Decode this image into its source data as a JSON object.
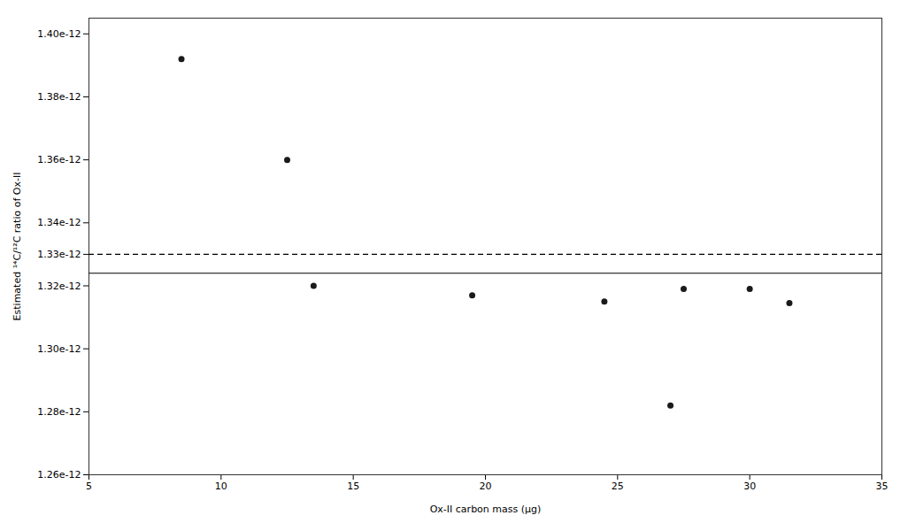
{
  "chart_data": {
    "type": "scatter",
    "x": [
      8.5,
      12.5,
      13.5,
      19.5,
      24.5,
      27.0,
      27.5,
      30.0,
      31.5
    ],
    "values": [
      1.392e-12,
      1.36e-12,
      1.32e-12,
      1.317e-12,
      1.315e-12,
      1.282e-12,
      1.319e-12,
      1.319e-12,
      1.3145e-12
    ],
    "color": "#1a1a1a",
    "hlines": [
      {
        "y": 1.324e-12,
        "line_style": "solid",
        "color": "#000000"
      },
      {
        "y": 1.33e-12,
        "line_style": "dashed",
        "color": "#000000"
      }
    ],
    "xlabel": "Ox-II carbon mass (μg)",
    "ylabel": "Estimated ¹⁴C/¹²C ratio of Ox-II",
    "xlim": [
      5,
      35
    ],
    "ylim": [
      1.26e-12,
      1.405e-12
    ],
    "xticks": [
      5,
      10,
      15,
      20,
      25,
      30,
      35
    ],
    "yticks": [
      {
        "value": 1.26e-12,
        "label": "1.26e-12"
      },
      {
        "value": 1.28e-12,
        "label": "1.28e-12"
      },
      {
        "value": 1.3e-12,
        "label": "1.30e-12"
      },
      {
        "value": 1.32e-12,
        "label": "1.32e-12"
      },
      {
        "value": 1.33e-12,
        "label": "1.33e-12"
      },
      {
        "value": 1.34e-12,
        "label": "1.34e-12"
      },
      {
        "value": 1.36e-12,
        "label": "1.36e-12"
      },
      {
        "value": 1.38e-12,
        "label": "1.38e-12"
      },
      {
        "value": 1.4e-12,
        "label": "1.40e-12"
      }
    ],
    "grid": false
  }
}
